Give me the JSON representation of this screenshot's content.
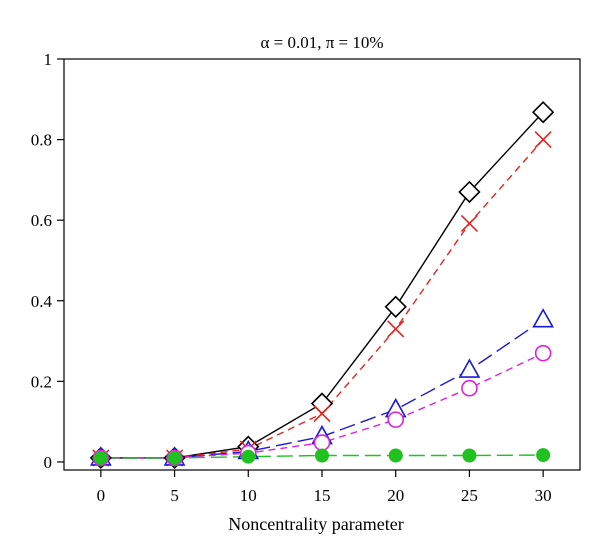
{
  "chart_data": {
    "type": "line",
    "title": "α = 0.01, π = 10%",
    "xlabel": "Noncentrality parameter",
    "ylabel": "",
    "x": [
      0,
      5,
      10,
      15,
      20,
      25,
      30
    ],
    "xlim": [
      -2.5,
      32.5
    ],
    "ylim": [
      -0.02,
      1.0
    ],
    "xticks": [
      "0",
      "5",
      "10",
      "15",
      "20",
      "25",
      "30"
    ],
    "yticks": [
      "0",
      "0.2",
      "0.4",
      "0.6",
      "0.8",
      "1"
    ],
    "grid": false,
    "series": [
      {
        "marker": "diamond",
        "color": "#000000",
        "dash": "solid",
        "values": [
          0.01,
          0.01,
          0.038,
          0.145,
          0.385,
          0.67,
          0.868
        ]
      },
      {
        "marker": "cross",
        "color": "#e8221c",
        "dash": "dashed",
        "values": [
          0.01,
          0.01,
          0.032,
          0.12,
          0.33,
          0.592,
          0.8
        ]
      },
      {
        "marker": "triangle",
        "color": "#1a1ad6",
        "dash": "longdash",
        "values": [
          0.01,
          0.01,
          0.026,
          0.063,
          0.13,
          0.228,
          0.353
        ]
      },
      {
        "marker": "circle-open",
        "color": "#e020e0",
        "dash": "dashed",
        "values": [
          0.01,
          0.01,
          0.022,
          0.048,
          0.105,
          0.183,
          0.27
        ]
      },
      {
        "marker": "circle-filled",
        "color": "#1fc21f",
        "dash": "longdash",
        "values": [
          0.01,
          0.01,
          0.013,
          0.016,
          0.016,
          0.016,
          0.017
        ]
      }
    ]
  }
}
